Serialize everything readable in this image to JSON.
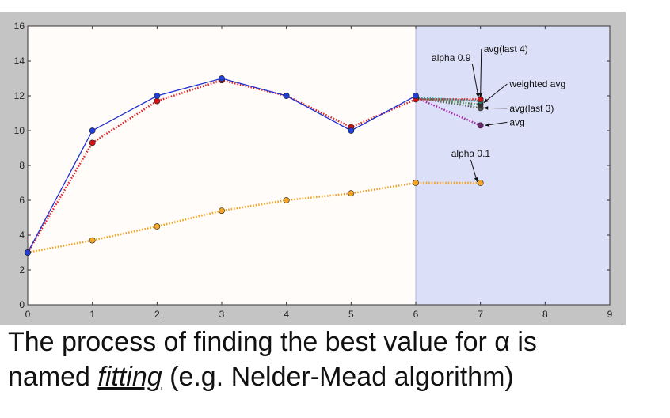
{
  "chart_data": {
    "type": "line",
    "xlim": [
      0,
      9
    ],
    "ylim": [
      0,
      16
    ],
    "x_ticks": [
      "0",
      "1",
      "2",
      "3",
      "4",
      "5",
      "6",
      "7",
      "8",
      "9"
    ],
    "y_ticks": [
      "0",
      "2",
      "4",
      "6",
      "8",
      "10",
      "12",
      "14",
      "16"
    ],
    "shaded_region": {
      "x_from": 6,
      "x_to": 9,
      "color": "#dcdff8"
    },
    "series": [
      {
        "key": "actual",
        "style": "solid",
        "color": "#1f2fd0",
        "point_color": "#1f3fd8",
        "x": [
          0,
          1,
          2,
          3,
          4,
          5,
          6
        ],
        "y": [
          3.0,
          10.0,
          12.0,
          13.0,
          12.0,
          10.0,
          12.0
        ]
      },
      {
        "key": "alpha_09",
        "style": "dotted",
        "color": "#e02020",
        "point_color": "#cc1515",
        "x": [
          0,
          1,
          2,
          3,
          4,
          5,
          6,
          7
        ],
        "y": [
          3.0,
          9.3,
          11.7,
          12.9,
          12.0,
          10.2,
          11.8,
          11.8
        ]
      },
      {
        "key": "alpha_01",
        "style": "dotted",
        "color": "#f0a020",
        "point_color": "#f4a524",
        "x": [
          0,
          1,
          2,
          3,
          4,
          5,
          6,
          7
        ],
        "y": [
          3.0,
          3.7,
          4.5,
          5.4,
          6.0,
          6.4,
          7.0,
          7.0
        ]
      },
      {
        "key": "avg_last4",
        "style": "dotted",
        "color": "#20a0a0",
        "point_color": "#2a8a8a",
        "x": [
          6,
          7
        ],
        "y": [
          11.9,
          11.7
        ]
      },
      {
        "key": "weighted_avg",
        "style": "dotted",
        "color": "#3a7a3a",
        "point_color": "#333333",
        "x": [
          6,
          7
        ],
        "y": [
          11.9,
          11.5
        ]
      },
      {
        "key": "avg_last3",
        "style": "dotted",
        "color": "#556655",
        "point_color": "#555555",
        "x": [
          6,
          7
        ],
        "y": [
          11.9,
          11.3
        ]
      },
      {
        "key": "avg",
        "style": "dotted",
        "color": "#aa22aa",
        "point_color": "#6a2a6a",
        "x": [
          6,
          7
        ],
        "y": [
          11.9,
          10.3
        ]
      }
    ],
    "annotations": [
      {
        "text": "avg(last 4)",
        "target_x": 7.0,
        "target_y": 11.9,
        "text_x": 7.05,
        "text_y": 14.5,
        "anchor": "start"
      },
      {
        "text": "alpha 0.9",
        "target_x": 6.97,
        "target_y": 11.9,
        "text_x": 6.85,
        "text_y": 14.0,
        "anchor": "end"
      },
      {
        "text": "weighted avg",
        "target_x": 7.05,
        "target_y": 11.6,
        "text_x": 7.45,
        "text_y": 12.5,
        "anchor": "start"
      },
      {
        "text": "avg(last 3)",
        "target_x": 7.05,
        "target_y": 11.3,
        "text_x": 7.45,
        "text_y": 11.1,
        "anchor": "start"
      },
      {
        "text": "avg",
        "target_x": 7.07,
        "target_y": 10.3,
        "text_x": 7.45,
        "text_y": 10.3,
        "anchor": "start"
      },
      {
        "text": "alpha 0.1",
        "target_x": 6.95,
        "target_y": 7.05,
        "text_x": 6.85,
        "text_y": 8.5,
        "anchor": "middle"
      }
    ]
  },
  "caption": {
    "line1": "The process of finding the best value for α is",
    "line2_prefix": "named ",
    "line2_emphasis": "fitting",
    "line2_suffix": " (e.g. Nelder-Mead algorithm)"
  }
}
